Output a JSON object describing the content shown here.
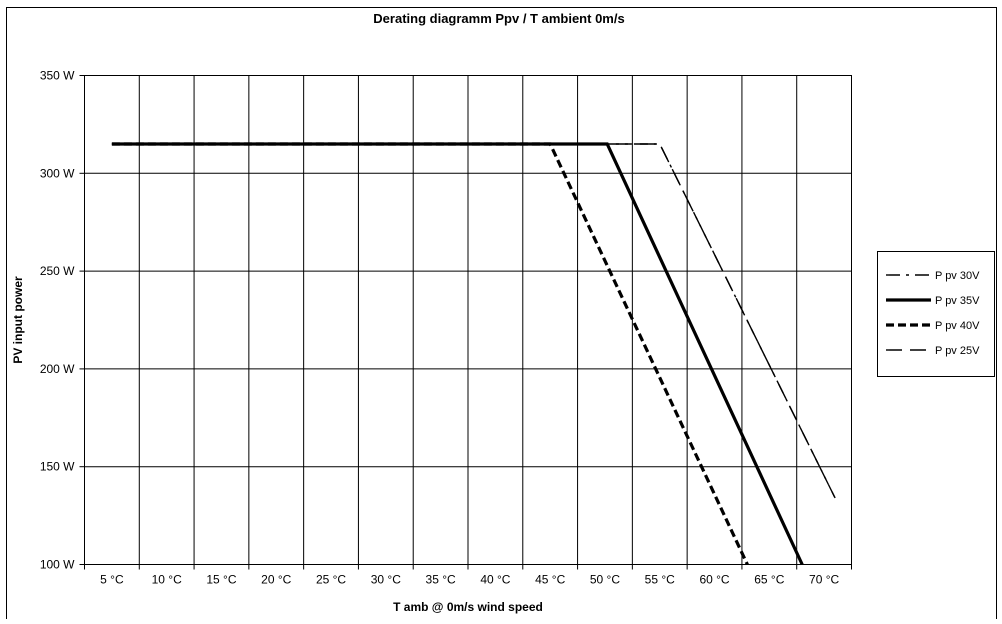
{
  "chart_data": {
    "type": "line",
    "title": "Derating diagramm Ppv / T ambient 0m/s",
    "xlabel": "T amb  @  0m/s wind speed",
    "ylabel": "PV input power",
    "x_tick_labels": [
      "5 °C",
      "10 °C",
      "15 °C",
      "20 °C",
      "25 °C",
      "30 °C",
      "35 °C",
      "40 °C",
      "45 °C",
      "50 °C",
      "55 °C",
      "60 °C",
      "65 °C",
      "70 °C"
    ],
    "x_ticks": [
      5,
      10,
      15,
      20,
      25,
      30,
      35,
      40,
      45,
      50,
      55,
      60,
      65,
      70
    ],
    "y_tick_labels": [
      "100 W",
      "150 W",
      "200 W",
      "250 W",
      "300 W",
      "350 W"
    ],
    "y_ticks": [
      100,
      150,
      200,
      250,
      300,
      350
    ],
    "xlim": [
      2.5,
      72.5
    ],
    "ylim": [
      100,
      350
    ],
    "grid": true,
    "legend_position": "right",
    "series": [
      {
        "name": "P pv 30V",
        "style": "dash-dot",
        "color": "#000000",
        "x": [
          5,
          55,
          71
        ],
        "y": [
          315,
          315,
          134
        ]
      },
      {
        "name": "P pv 35V",
        "style": "solid-thick",
        "color": "#000000",
        "x": [
          5,
          50.2,
          68
        ],
        "y": [
          315,
          315,
          100
        ]
      },
      {
        "name": "P pv 40V",
        "style": "dash-thick",
        "color": "#000000",
        "x": [
          5,
          45,
          63
        ],
        "y": [
          315,
          315,
          100
        ]
      },
      {
        "name": "P pv 25V",
        "style": "long-dash",
        "color": "#000000",
        "x": [
          5,
          55,
          71
        ],
        "y": [
          315,
          315,
          134
        ]
      }
    ]
  }
}
